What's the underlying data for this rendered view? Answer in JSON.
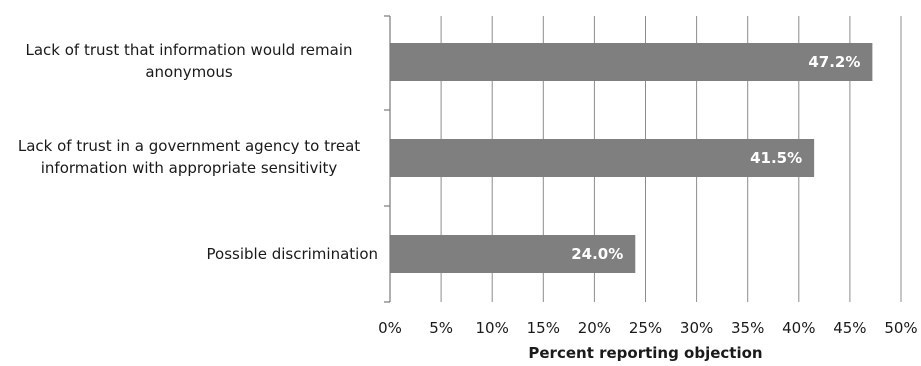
{
  "chart_data": {
    "type": "bar",
    "orientation": "horizontal",
    "categories": [
      "Lack of trust that information would remain anonymous",
      "Lack of trust in a government agency to treat information with appropriate sensitivity",
      "Possible discrimination"
    ],
    "values": [
      47.2,
      41.5,
      24.0
    ],
    "data_labels": [
      "47.2%",
      "41.5%",
      "24.0%"
    ],
    "xlabel": "Percent reporting objection",
    "xlim": [
      0,
      50
    ],
    "x_ticks": [
      "0%",
      "5%",
      "10%",
      "15%",
      "20%",
      "25%",
      "30%",
      "35%",
      "40%",
      "45%",
      "50%"
    ],
    "grid": true,
    "legend": "none",
    "bar_color": "#7f7f7f",
    "grid_color": "#8c8c8c"
  }
}
